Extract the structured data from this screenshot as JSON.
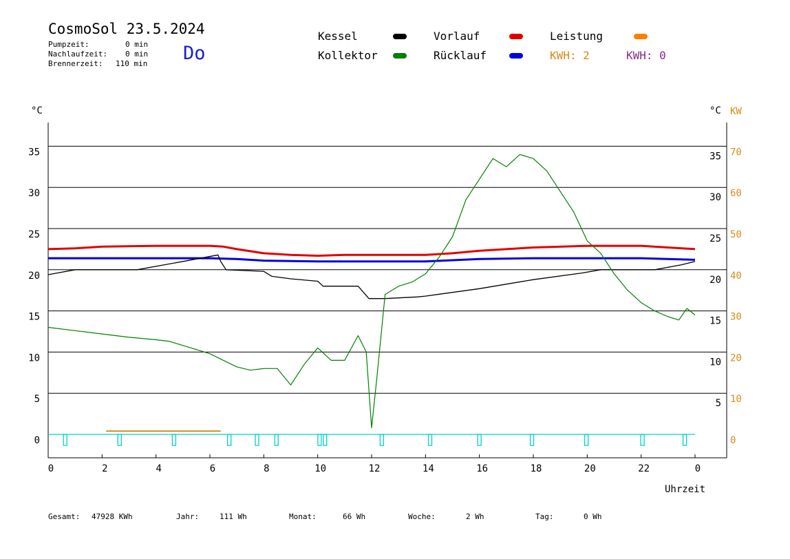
{
  "header": {
    "title": "CosmoSol 23.5.2024",
    "weekday": "Do",
    "info": [
      {
        "label": "Pumpzeit:",
        "value": "0 min"
      },
      {
        "label": "Nachlaufzeit:",
        "value": "0 min"
      },
      {
        "label": "Brennerzeit:",
        "value": "110 min"
      }
    ]
  },
  "legend": {
    "items": [
      {
        "label": "Kessel",
        "color": "#000000"
      },
      {
        "label": "Vorlauf",
        "color": "#e00000"
      },
      {
        "label": "Leistung",
        "color": "#ff8000"
      },
      {
        "label": "Kollektor",
        "color": "#008000"
      },
      {
        "label": "Rücklauf",
        "color": "#0000e0"
      }
    ],
    "kwh": [
      {
        "label": "KWH: 2",
        "color": "#d88a18"
      },
      {
        "label": "KWH: 0",
        "color": "#8a2a8a"
      }
    ]
  },
  "footer": {
    "stats": [
      {
        "label": "Gesamt:",
        "value": "47928 KWh"
      },
      {
        "label": "Jahr:",
        "value": "111 Wh"
      },
      {
        "label": "Monat:",
        "value": "66 Wh"
      },
      {
        "label": "Woche:",
        "value": "2 Wh"
      },
      {
        "label": "Tag:",
        "value": "0 Wh"
      }
    ]
  },
  "chart_data": {
    "type": "line",
    "xlabel": "Uhrzeit",
    "y_unit_left": "°C",
    "y_unit_right": "°C",
    "y_unit_kw": "KW",
    "x_ticks": [
      "0",
      "2",
      "4",
      "6",
      "8",
      "10",
      "12",
      "14",
      "16",
      "18",
      "20",
      "22",
      "0"
    ],
    "xlim": [
      0,
      24
    ],
    "y_ticks": [
      0,
      5,
      10,
      15,
      20,
      25,
      30,
      35
    ],
    "y_ticks_right": [
      5,
      10,
      15,
      20,
      25,
      30,
      35
    ],
    "kw_ticks": [
      0,
      10,
      20,
      30,
      40,
      50,
      60,
      70
    ],
    "ylim": [
      -2.8,
      37.7
    ],
    "grid": true,
    "series": [
      {
        "name": "Vorlauf",
        "color": "#e00000",
        "x": [
          0,
          1,
          2,
          4,
          6,
          6.5,
          7,
          8,
          9,
          10,
          11,
          12,
          13,
          14,
          15,
          16,
          18,
          20,
          22,
          23,
          24
        ],
        "y": [
          22.5,
          22.6,
          22.8,
          22.9,
          22.9,
          22.8,
          22.5,
          22.0,
          21.8,
          21.7,
          21.8,
          21.8,
          21.8,
          21.8,
          22.0,
          22.3,
          22.7,
          22.9,
          22.9,
          22.7,
          22.5
        ]
      },
      {
        "name": "Rücklauf",
        "color": "#0000e0",
        "x": [
          0,
          2,
          4,
          6,
          7,
          8,
          10,
          12,
          14,
          16,
          18,
          20,
          22,
          24
        ],
        "y": [
          21.4,
          21.4,
          21.4,
          21.4,
          21.3,
          21.1,
          21.0,
          21.0,
          21.0,
          21.3,
          21.4,
          21.4,
          21.4,
          21.2
        ]
      },
      {
        "name": "Kessel",
        "color": "#000000",
        "x": [
          0,
          1,
          3.3,
          5,
          6.3,
          6.4,
          6.6,
          8,
          8.3,
          9,
          10,
          10.2,
          11.5,
          11.9,
          12.5,
          13.7,
          14,
          16,
          18,
          19.8,
          20.5,
          22.5,
          23.5,
          24
        ],
        "y": [
          19.4,
          20.0,
          20.0,
          21.0,
          21.8,
          21.0,
          20.0,
          19.8,
          19.2,
          18.9,
          18.6,
          18.0,
          18.0,
          16.5,
          16.5,
          16.7,
          16.8,
          17.7,
          18.8,
          19.6,
          20.0,
          20.0,
          20.6,
          21.0
        ]
      },
      {
        "name": "Kollektor",
        "color": "#008000",
        "x": [
          0,
          1,
          2,
          3,
          4,
          4.5,
          5,
          6,
          6.5,
          7,
          7.5,
          8,
          8.5,
          9,
          9.5,
          10,
          10.5,
          11,
          11.5,
          11.8,
          12,
          12.2,
          12.5,
          13,
          13.5,
          14,
          14.5,
          15,
          15.5,
          16,
          16.5,
          17,
          17.5,
          18,
          18.5,
          19,
          19.5,
          20,
          20.5,
          21,
          21.5,
          22,
          22.5,
          23,
          23.4,
          23.7,
          24
        ],
        "y": [
          13.0,
          12.6,
          12.2,
          11.8,
          11.5,
          11.3,
          10.8,
          9.8,
          9.0,
          8.2,
          7.8,
          8.0,
          8.0,
          6.0,
          8.5,
          10.5,
          9.0,
          9.0,
          12.0,
          10.0,
          0.8,
          7.0,
          17.0,
          18.0,
          18.5,
          19.5,
          21.5,
          24.0,
          28.5,
          31.0,
          33.5,
          32.5,
          34.0,
          33.5,
          32.0,
          29.5,
          27.0,
          23.5,
          22.0,
          19.5,
          17.5,
          16.0,
          15.0,
          14.3,
          13.9,
          15.3,
          14.5
        ]
      }
    ],
    "leistung": {
      "name": "Leistung",
      "color": "#d88a18",
      "x": [
        2.15,
        6.4
      ],
      "y": [
        0.4,
        0.4
      ]
    },
    "pump_markers": {
      "color": "#00d0d0",
      "x": [
        0.63,
        2.65,
        4.67,
        6.72,
        7.75,
        8.47,
        10.07,
        10.27,
        12.38,
        14.17,
        16.0,
        17.95,
        19.97,
        22.05,
        23.62
      ]
    }
  }
}
